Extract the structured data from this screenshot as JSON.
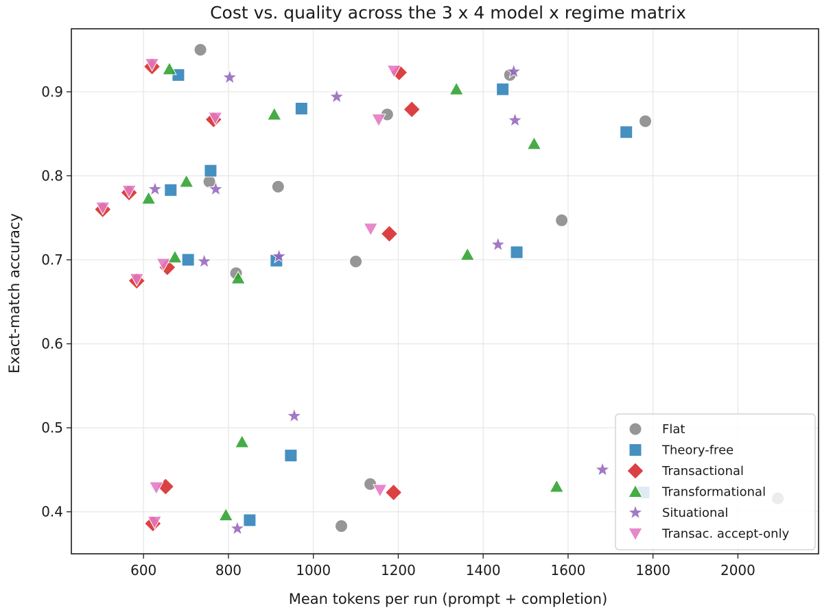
{
  "chart_data": {
    "type": "scatter",
    "title": "Cost vs. quality across the 3 x 4 model x regime matrix",
    "xlabel": "Mean tokens per run (prompt + completion)",
    "ylabel": "Exact-match accuracy",
    "xlim": [
      430,
      2190
    ],
    "ylim": [
      0.35,
      0.975
    ],
    "xticks": [
      600,
      800,
      1000,
      1200,
      1400,
      1600,
      1800,
      2000
    ],
    "yticks": [
      0.4,
      0.5,
      0.6,
      0.7,
      0.8,
      0.9
    ],
    "ytick_labels": [
      "0.4",
      "0.5",
      "0.6",
      "0.7",
      "0.8",
      "0.9"
    ],
    "grid": true,
    "legend_position": "lower-right",
    "series": [
      {
        "name": "Flat",
        "marker": "circle",
        "color": "#888888",
        "points": [
          [
            734,
            0.95
          ],
          [
            1463,
            0.92
          ],
          [
            1174,
            0.873
          ],
          [
            1782,
            0.865
          ],
          [
            755,
            0.793
          ],
          [
            917,
            0.787
          ],
          [
            1585,
            0.747
          ],
          [
            1100,
            0.698
          ],
          [
            818,
            0.684
          ],
          [
            1134,
            0.433
          ],
          [
            1066,
            0.383
          ],
          [
            2094,
            0.416
          ]
        ]
      },
      {
        "name": "Theory-free",
        "marker": "square",
        "color": "#2c7fb8",
        "points": [
          [
            682,
            0.92
          ],
          [
            1446,
            0.903
          ],
          [
            972,
            0.88
          ],
          [
            1737,
            0.852
          ],
          [
            758,
            0.806
          ],
          [
            664,
            0.783
          ],
          [
            705,
            0.7
          ],
          [
            913,
            0.699
          ],
          [
            1479,
            0.709
          ],
          [
            947,
            0.467
          ],
          [
            850,
            0.39
          ],
          [
            1778,
            0.423
          ]
        ]
      },
      {
        "name": "Transactional",
        "marker": "diamond",
        "color": "#d62728",
        "points": [
          [
            620,
            0.93
          ],
          [
            1202,
            0.923
          ],
          [
            1232,
            0.879
          ],
          [
            765,
            0.867
          ],
          [
            566,
            0.78
          ],
          [
            504,
            0.76
          ],
          [
            1179,
            0.731
          ],
          [
            656,
            0.691
          ],
          [
            584,
            0.675
          ],
          [
            652,
            0.43
          ],
          [
            1189,
            0.423
          ],
          [
            622,
            0.386
          ]
        ]
      },
      {
        "name": "Transformational",
        "marker": "triangle-up",
        "color": "#2ca02c",
        "points": [
          [
            661,
            0.927
          ],
          [
            1337,
            0.903
          ],
          [
            908,
            0.873
          ],
          [
            1520,
            0.838
          ],
          [
            701,
            0.793
          ],
          [
            612,
            0.773
          ],
          [
            674,
            0.703
          ],
          [
            1363,
            0.706
          ],
          [
            823,
            0.678
          ],
          [
            832,
            0.483
          ],
          [
            794,
            0.396
          ],
          [
            1573,
            0.43
          ]
        ]
      },
      {
        "name": "Situational",
        "marker": "star",
        "color": "#9467bd",
        "points": [
          [
            803,
            0.917
          ],
          [
            1472,
            0.924
          ],
          [
            1055,
            0.894
          ],
          [
            1475,
            0.866
          ],
          [
            770,
            0.784
          ],
          [
            627,
            0.784
          ],
          [
            743,
            0.698
          ],
          [
            919,
            0.704
          ],
          [
            1435,
            0.718
          ],
          [
            955,
            0.514
          ],
          [
            821,
            0.38
          ],
          [
            1681,
            0.45
          ]
        ]
      },
      {
        "name": "Transac. accept-only",
        "marker": "triangle-down",
        "color": "#e377c2",
        "points": [
          [
            620,
            0.933
          ],
          [
            1190,
            0.925
          ],
          [
            1154,
            0.867
          ],
          [
            769,
            0.869
          ],
          [
            566,
            0.782
          ],
          [
            504,
            0.762
          ],
          [
            1135,
            0.737
          ],
          [
            647,
            0.695
          ],
          [
            584,
            0.677
          ],
          [
            630,
            0.429
          ],
          [
            1157,
            0.426
          ],
          [
            626,
            0.388
          ]
        ]
      }
    ]
  }
}
